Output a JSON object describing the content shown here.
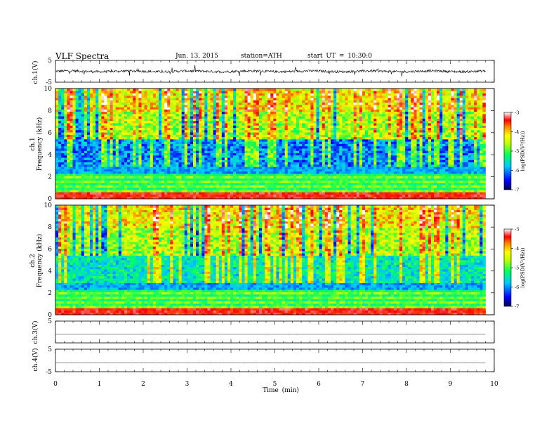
{
  "header": {
    "title": "VLF Spectra",
    "date": "Jun. 13, 2015",
    "station": "station=ATH",
    "start": "start UT = 10:30:0"
  },
  "colors": {
    "spectrogram_scale": [
      "#000080",
      "#0000ff",
      "#00c0ff",
      "#00ff80",
      "#a0ff00",
      "#ffff00",
      "#ff8000",
      "#ff0000",
      "#ffffff"
    ]
  },
  "chart_data": [
    {
      "id": "ch1-waveform",
      "type": "line",
      "ylabel": "ch.1(V)",
      "ylim": [
        -5,
        5
      ],
      "yticks": [
        "5",
        "-5"
      ],
      "xlim": [
        0,
        10
      ],
      "description_level": "noisy waveform near 0 V, amplitude about ±1 V",
      "mean": 0,
      "amplitude": 0.9
    },
    {
      "id": "ch1-spectrogram",
      "type": "heatmap",
      "ylabel": "Frequency (kHz)",
      "channel_label": "ch.1",
      "ylim": [
        0,
        10
      ],
      "yticks": [
        "0",
        "2",
        "4",
        "6",
        "8",
        "10"
      ],
      "xlim": [
        0,
        9.8
      ],
      "colorbar": {
        "label": "log(PSD(V²/Hz))",
        "range": [
          -7,
          -3
        ],
        "ticks": [
          "-3",
          "-4",
          "-5",
          "-6",
          "-7"
        ]
      }
    },
    {
      "id": "ch2-spectrogram",
      "type": "heatmap",
      "ylabel": "Frequency (kHz)",
      "channel_label": "ch.2",
      "ylim": [
        0,
        10
      ],
      "yticks": [
        "0",
        "2",
        "4",
        "6",
        "8",
        "10"
      ],
      "xlim": [
        0,
        9.8
      ],
      "colorbar": {
        "label": "log(PSD(V²/Hz))",
        "range": [
          -7,
          -3
        ],
        "ticks": [
          "-3",
          "-4",
          "-5",
          "-6",
          "-7"
        ]
      }
    },
    {
      "id": "ch3-waveform",
      "type": "line",
      "ylabel": "ch.3(V)",
      "ylim": [
        -5,
        5
      ],
      "yticks": [
        "5"
      ],
      "xlim": [
        0,
        10
      ],
      "mean": -1.0,
      "amplitude": 0.1
    },
    {
      "id": "ch4-waveform",
      "type": "line",
      "ylabel": "ch.4(V)",
      "ylim": [
        -5,
        5
      ],
      "yticks": [
        "5",
        "-5"
      ],
      "xlim": [
        0,
        10
      ],
      "mean": -1.0,
      "amplitude": 0.02
    }
  ],
  "xaxis": {
    "label": "Time (min)",
    "range": [
      0,
      10
    ],
    "ticks": [
      "0",
      "1",
      "2",
      "3",
      "4",
      "5",
      "6",
      "7",
      "8",
      "9",
      "10"
    ],
    "data_end": 9.8
  }
}
